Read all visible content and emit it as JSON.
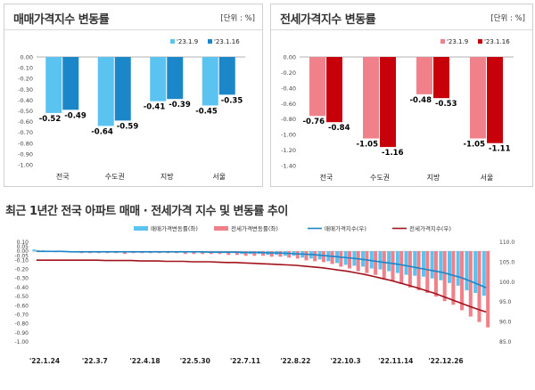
{
  "chart_data": [
    {
      "type": "bar",
      "title": "매매가격지수 변동률",
      "unit_label": "[단위 : %]",
      "categories": [
        "전국",
        "수도권",
        "지방",
        "서울"
      ],
      "series": [
        {
          "name": "'23.1.9",
          "values": [
            -0.52,
            -0.64,
            -0.41,
            -0.45
          ],
          "color": "#5bc3ef"
        },
        {
          "name": "'23.1.16",
          "values": [
            -0.49,
            -0.59,
            -0.39,
            -0.35
          ],
          "color": "#1b86c8"
        }
      ],
      "data_labels": [
        [
          "-0.52",
          "-0.64",
          "-0.41",
          "-0.45"
        ],
        [
          "-0.49",
          "-0.59",
          "-0.39",
          "-0.35"
        ]
      ],
      "ylim": [
        -1.0,
        0.0
      ],
      "yticks": [
        "0.00",
        "-0.10",
        "-0.20",
        "-0.30",
        "-0.40",
        "-0.50",
        "-0.60",
        "-0.70",
        "-0.80",
        "-0.90",
        "-1.00"
      ],
      "grid": false,
      "legend_position": "top-right"
    },
    {
      "type": "bar",
      "title": "전세가격지수 변동률",
      "unit_label": "[단위 : %]",
      "categories": [
        "전국",
        "수도권",
        "지방",
        "서울"
      ],
      "series": [
        {
          "name": "'23.1.9",
          "values": [
            -0.76,
            -1.05,
            -0.48,
            -1.05
          ],
          "color": "#f0808a"
        },
        {
          "name": "'23.1.16",
          "values": [
            -0.84,
            -1.16,
            -0.53,
            -1.11
          ],
          "color": "#c8000a"
        }
      ],
      "data_labels": [
        [
          "-0.76",
          "-1.05",
          "-0.48",
          "-1.05"
        ],
        [
          "-0.84",
          "-1.16",
          "-0.53",
          "-1.11"
        ]
      ],
      "ylim": [
        -1.4,
        0.0
      ],
      "yticks": [
        "0.00",
        "-0.20",
        "-0.40",
        "-0.60",
        "-0.80",
        "-1.00",
        "-1.20",
        "-1.40"
      ],
      "grid": false,
      "legend_position": "top-right"
    },
    {
      "type": "bar+line",
      "title": "최근 1년간 전국 아파트 매매 · 전세가격 지수 및 변동률 추이",
      "xtick_labels": [
        "'22.1.24",
        "'22.3.7",
        "'22.4.18",
        "'22.5.30",
        "'22.7.11",
        "'22.8.22",
        "'22.10.3",
        "'22.11.14",
        "'22.12.26"
      ],
      "left_axis": {
        "ylim": [
          -1.0,
          0.1
        ],
        "ticks": [
          "0.10",
          "0.05",
          "0.00",
          "-0.05",
          "-0.10",
          "-0.20",
          "-0.30",
          "-0.40",
          "-0.50",
          "-0.60",
          "-0.70",
          "-0.80",
          "-0.90",
          "-1.00"
        ]
      },
      "right_axis": {
        "ylim": [
          85.0,
          110.0
        ],
        "ticks": [
          "110.0",
          "105.0",
          "100.0",
          "95.0",
          "90.0",
          "85.0"
        ]
      },
      "series": [
        {
          "name": "매매가격변동률(좌)",
          "kind": "bar",
          "axis": "left",
          "color": "#5bc3ef",
          "values": [
            0.02,
            0.01,
            0.0,
            0.0,
            0.0,
            0.0,
            0.0,
            0.0,
            0.0,
            0.0,
            0.0,
            0.0,
            0.0,
            0.0,
            0.0,
            0.0,
            0.0,
            -0.01,
            -0.01,
            -0.01,
            -0.01,
            -0.02,
            -0.02,
            -0.02,
            -0.03,
            -0.03,
            -0.03,
            -0.04,
            -0.04,
            -0.05,
            -0.05,
            -0.07,
            -0.08,
            -0.09,
            -0.11,
            -0.13,
            -0.15,
            -0.16,
            -0.17,
            -0.19,
            -0.2,
            -0.22,
            -0.24,
            -0.26,
            -0.27,
            -0.28,
            -0.3,
            -0.32,
            -0.35,
            -0.38,
            -0.43,
            -0.46,
            -0.49
          ]
        },
        {
          "name": "전세가격변동률(좌)",
          "kind": "bar",
          "axis": "left",
          "color": "#f0808a",
          "values": [
            0.01,
            0.0,
            -0.01,
            -0.01,
            -0.01,
            -0.02,
            -0.02,
            -0.02,
            -0.02,
            -0.02,
            -0.03,
            -0.02,
            -0.02,
            -0.02,
            -0.02,
            -0.02,
            -0.02,
            -0.03,
            -0.03,
            -0.03,
            -0.03,
            -0.03,
            -0.04,
            -0.04,
            -0.05,
            -0.05,
            -0.05,
            -0.06,
            -0.06,
            -0.07,
            -0.08,
            -0.1,
            -0.11,
            -0.12,
            -0.14,
            -0.17,
            -0.19,
            -0.22,
            -0.24,
            -0.26,
            -0.3,
            -0.33,
            -0.36,
            -0.4,
            -0.43,
            -0.46,
            -0.5,
            -0.55,
            -0.59,
            -0.65,
            -0.72,
            -0.78,
            -0.84
          ]
        },
        {
          "name": "매매가격지수(우)",
          "kind": "line",
          "axis": "right",
          "color": "#1b86c8",
          "values": [
            107.7,
            107.7,
            107.7,
            107.7,
            107.6,
            107.6,
            107.6,
            107.6,
            107.6,
            107.6,
            107.6,
            107.6,
            107.6,
            107.6,
            107.6,
            107.6,
            107.6,
            107.6,
            107.6,
            107.6,
            107.5,
            107.5,
            107.5,
            107.5,
            107.4,
            107.4,
            107.4,
            107.3,
            107.3,
            107.2,
            107.1,
            107.0,
            106.9,
            106.7,
            106.5,
            106.3,
            106.1,
            105.9,
            105.6,
            105.3,
            105.0,
            104.7,
            104.4,
            104.0,
            103.6,
            103.2,
            102.8,
            102.4,
            101.8,
            101.2,
            100.4,
            99.5,
            98.6
          ]
        },
        {
          "name": "전세가격지수(우)",
          "kind": "line",
          "axis": "right",
          "color": "#a2131c",
          "values": [
            105.5,
            105.5,
            105.5,
            105.5,
            105.5,
            105.5,
            105.5,
            105.5,
            105.4,
            105.4,
            105.4,
            105.4,
            105.3,
            105.3,
            105.3,
            105.2,
            105.2,
            105.2,
            105.1,
            105.1,
            105.1,
            105.0,
            104.9,
            104.9,
            104.8,
            104.7,
            104.6,
            104.5,
            104.4,
            104.3,
            104.2,
            104.0,
            103.8,
            103.6,
            103.3,
            103.0,
            102.7,
            102.3,
            101.9,
            101.4,
            100.9,
            100.4,
            99.8,
            99.2,
            98.6,
            97.9,
            97.2,
            96.4,
            95.6,
            94.8,
            94.0,
            93.2,
            92.5
          ]
        }
      ],
      "legend_position": "top-center"
    }
  ]
}
